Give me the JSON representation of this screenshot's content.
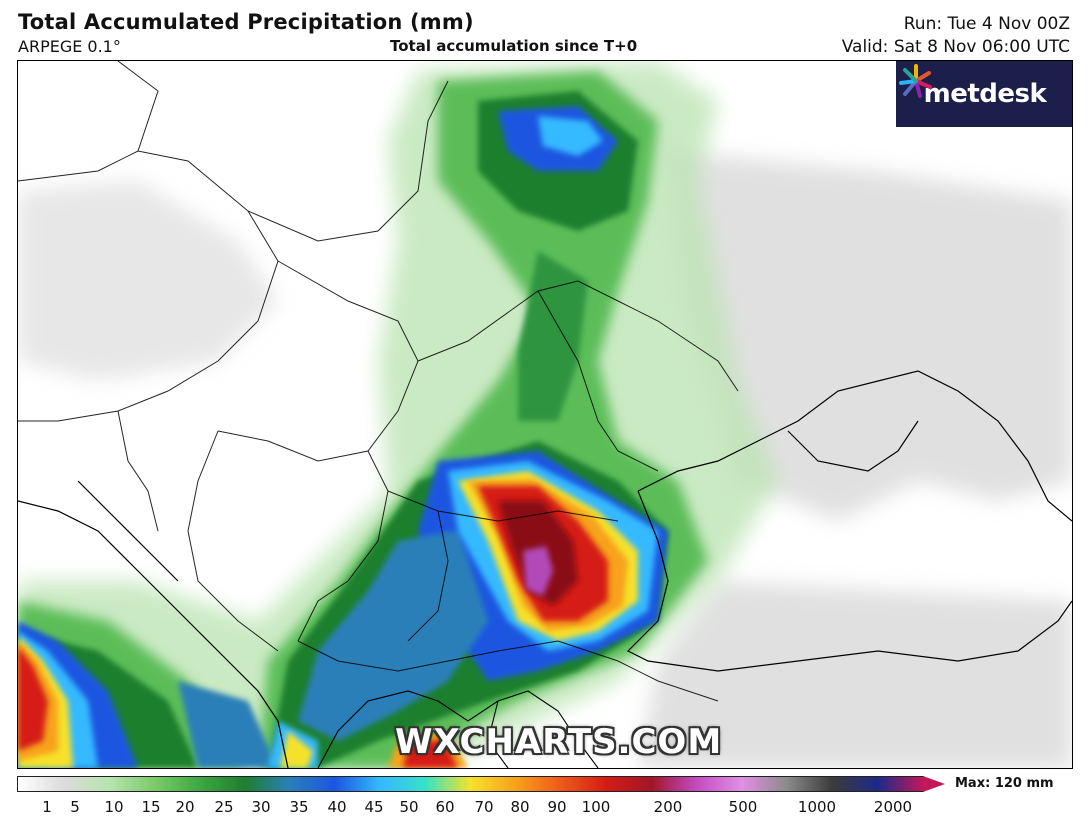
{
  "header": {
    "title": "Total Accumulated Precipitation (mm)",
    "model": "ARPEGE 0.1°",
    "subtitle": "Total accumulation since T+0",
    "run": "Run: Tue 4 Nov 00Z",
    "valid": "Valid: Sat 8 Nov 06:00 UTC"
  },
  "branding": {
    "logo_text": "metdesk",
    "watermark": "WXCHARTS.COM",
    "logo_bg": "#1c1f4a"
  },
  "legend": {
    "max_label": "Max: 120 mm",
    "ticks": [
      "1",
      "5",
      "10",
      "15",
      "20",
      "25",
      "30",
      "35",
      "40",
      "45",
      "50",
      "60",
      "70",
      "80",
      "90",
      "100",
      "200",
      "500",
      "1000",
      "2000"
    ],
    "colors": [
      "#ffffff",
      "#dcdcdc",
      "#b9e3b0",
      "#7ccb6d",
      "#3fa844",
      "#1d7f2e",
      "#2a7fb8",
      "#1b56e0",
      "#34b9ff",
      "#36e1c8",
      "#f6e12b",
      "#f7a21b",
      "#ee5a1a",
      "#d51c15",
      "#a0162a",
      "#c44bc1",
      "#e18fe6",
      "#8a8a8a",
      "#3b3b3b",
      "#1d2a8a",
      "#c2185b"
    ]
  },
  "map": {
    "region": "Balkans, Romania and Black Sea",
    "colors": {
      "light": "#cfe8c6",
      "green": "#3fa844",
      "dark_green": "#1d7f2e",
      "blue": "#1b56e0",
      "cyan": "#34b9ff",
      "yellow": "#f6e12b",
      "orange": "#f7a21b",
      "red": "#d51c15",
      "dark_red": "#8a0f12",
      "purple": "#b24ab9",
      "grey": "#c8c8c8"
    }
  }
}
